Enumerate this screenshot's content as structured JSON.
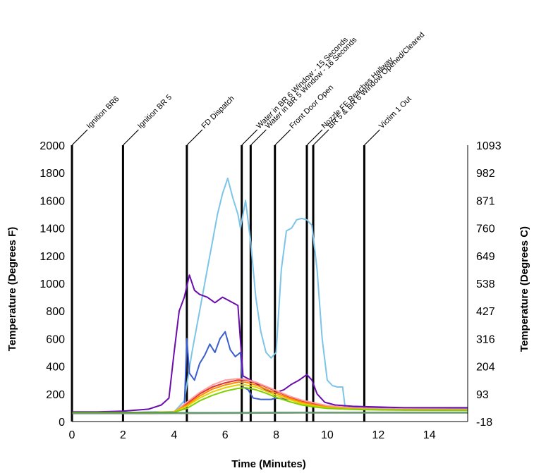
{
  "chart_data": {
    "type": "line",
    "title": "",
    "xlabel": "Time (Minutes)",
    "ylabel": "Temperature (Degrees F)",
    "y2label": "Temperature (Degrees C)",
    "xlim": [
      0,
      15.5
    ],
    "ylim": [
      0,
      2000
    ],
    "x_ticks": [
      0,
      2,
      4,
      6,
      8,
      10,
      12,
      14
    ],
    "y_ticks": [
      0,
      200,
      400,
      600,
      800,
      1000,
      1200,
      1400,
      1600,
      1800,
      2000
    ],
    "y2_tick_labels": [
      "-18",
      "93",
      "204",
      "316",
      "427",
      "538",
      "649",
      "760",
      "871",
      "982",
      "1093"
    ],
    "grid": false,
    "legend": "none",
    "events": [
      {
        "time": 0.0,
        "label": "Ignition BR6"
      },
      {
        "time": 2.0,
        "label": "Ignition BR 5"
      },
      {
        "time": 4.5,
        "label": "FD Dispatch"
      },
      {
        "time": 6.65,
        "label": "Water in BR 6 Window - 15 Seconds"
      },
      {
        "time": 7.0,
        "label": "Water in BR 5 Window - 16 Seconds"
      },
      {
        "time": 7.95,
        "label": "Front Door Open"
      },
      {
        "time": 9.2,
        "label": "Nozzle FF Reaches Hallway"
      },
      {
        "time": 9.45,
        "label": "BR 5 & BR 6 Window Opened/Cleared"
      },
      {
        "time": 11.45,
        "label": "Victim 1 Out"
      }
    ],
    "series": [
      {
        "color": "#7cc4e8",
        "x": [
          0,
          2,
          4,
          4.4,
          4.7,
          5.0,
          5.3,
          5.5,
          5.7,
          5.9,
          6.1,
          6.3,
          6.5,
          6.6,
          6.8,
          7.0,
          7.2,
          7.4,
          7.6,
          7.8,
          8.0,
          8.2,
          8.4,
          8.6,
          8.8,
          9.0,
          9.2,
          9.4,
          9.6,
          9.8,
          10.0,
          10.2,
          10.4,
          10.6,
          10.7,
          11,
          12,
          13,
          14,
          15.5
        ],
        "y": [
          65,
          65,
          70,
          150,
          500,
          800,
          1100,
          1300,
          1500,
          1650,
          1760,
          1620,
          1500,
          1400,
          1600,
          1300,
          900,
          650,
          500,
          460,
          500,
          1100,
          1380,
          1400,
          1460,
          1470,
          1460,
          1420,
          1100,
          600,
          300,
          260,
          250,
          250,
          100,
          95,
          90,
          90,
          90,
          90
        ]
      },
      {
        "color": "#3b5fd0",
        "x": [
          0,
          2,
          4,
          4.4,
          4.5,
          4.6,
          4.8,
          5.0,
          5.2,
          5.4,
          5.6,
          5.8,
          6.0,
          6.2,
          6.4,
          6.6,
          6.7,
          6.9,
          7.1,
          7.4,
          7.8,
          8.0,
          9,
          10,
          11,
          12,
          13,
          14,
          15.5
        ],
        "y": [
          65,
          65,
          70,
          100,
          600,
          350,
          300,
          420,
          480,
          560,
          500,
          600,
          650,
          520,
          470,
          500,
          250,
          230,
          170,
          160,
          160,
          170,
          150,
          110,
          100,
          95,
          90,
          90,
          90
        ]
      },
      {
        "color": "#6a0dad",
        "x": [
          0,
          1,
          2,
          3,
          3.5,
          3.8,
          4.0,
          4.2,
          4.4,
          4.6,
          4.8,
          5.0,
          5.3,
          5.6,
          5.9,
          6.1,
          6.3,
          6.5,
          6.7,
          6.9,
          7.1,
          7.4,
          7.7,
          8.0,
          8.3,
          8.6,
          8.9,
          9.2,
          9.4,
          9.6,
          9.9,
          10.3,
          11,
          12,
          13,
          14,
          15.5
        ],
        "y": [
          70,
          70,
          75,
          90,
          120,
          170,
          500,
          800,
          900,
          1060,
          950,
          920,
          900,
          860,
          900,
          880,
          860,
          840,
          330,
          310,
          290,
          250,
          220,
          210,
          230,
          270,
          300,
          340,
          300,
          200,
          140,
          120,
          110,
          105,
          100,
          100,
          100
        ]
      },
      {
        "color": "#e03030",
        "x": [
          0,
          3,
          4,
          4.5,
          5.0,
          5.5,
          6.0,
          6.5,
          6.8,
          7.2,
          7.6,
          8.0,
          8.5,
          9.0,
          9.5,
          10,
          11,
          12,
          13,
          15.5
        ],
        "y": [
          65,
          65,
          70,
          130,
          200,
          250,
          280,
          300,
          300,
          280,
          250,
          220,
          180,
          150,
          130,
          110,
          95,
          90,
          88,
          85
        ]
      },
      {
        "color": "#ffa0a0",
        "x": [
          0,
          3,
          4,
          4.5,
          5.0,
          5.5,
          6.0,
          6.5,
          6.8,
          7.2,
          7.6,
          8.0,
          8.5,
          9.0,
          9.5,
          10,
          11,
          12,
          13,
          15.5
        ],
        "y": [
          65,
          65,
          70,
          140,
          210,
          265,
          300,
          310,
          305,
          285,
          255,
          225,
          185,
          155,
          135,
          115,
          98,
          92,
          90,
          88
        ]
      },
      {
        "color": "#ff8c00",
        "x": [
          0,
          3,
          4,
          4.5,
          5.0,
          5.5,
          6.0,
          6.5,
          6.8,
          7.2,
          7.6,
          8.0,
          8.5,
          9.0,
          9.5,
          10,
          11,
          12,
          13,
          15.5
        ],
        "y": [
          65,
          65,
          70,
          120,
          185,
          235,
          265,
          285,
          285,
          265,
          235,
          205,
          170,
          140,
          120,
          105,
          92,
          88,
          86,
          84
        ]
      },
      {
        "color": "#e6d000",
        "x": [
          0,
          3,
          4,
          4.5,
          5.0,
          5.5,
          6.0,
          6.5,
          6.8,
          7.2,
          7.6,
          8.0,
          8.5,
          9.0,
          9.5,
          10,
          11,
          12,
          13,
          15.5
        ],
        "y": [
          65,
          65,
          70,
          110,
          170,
          215,
          245,
          265,
          265,
          250,
          220,
          190,
          160,
          130,
          112,
          100,
          90,
          86,
          84,
          82
        ]
      },
      {
        "color": "#7fd000",
        "x": [
          0,
          3,
          4,
          4.5,
          5.0,
          5.5,
          6.0,
          6.5,
          6.8,
          7.2,
          7.6,
          8.0,
          8.5,
          9.0,
          9.5,
          10,
          11,
          12,
          13,
          15.5
        ],
        "y": [
          65,
          65,
          68,
          95,
          150,
          190,
          220,
          240,
          245,
          230,
          205,
          175,
          145,
          120,
          105,
          95,
          88,
          84,
          82,
          80
        ]
      },
      {
        "color": "#2e8b57",
        "x": [
          0,
          3,
          6,
          9,
          12,
          15.5
        ],
        "y": [
          62,
          62,
          64,
          66,
          66,
          66
        ]
      },
      {
        "color": "#7a9a7a",
        "x": [
          0,
          3,
          6,
          9,
          12,
          15.5
        ],
        "y": [
          58,
          58,
          60,
          62,
          62,
          62
        ]
      }
    ]
  }
}
